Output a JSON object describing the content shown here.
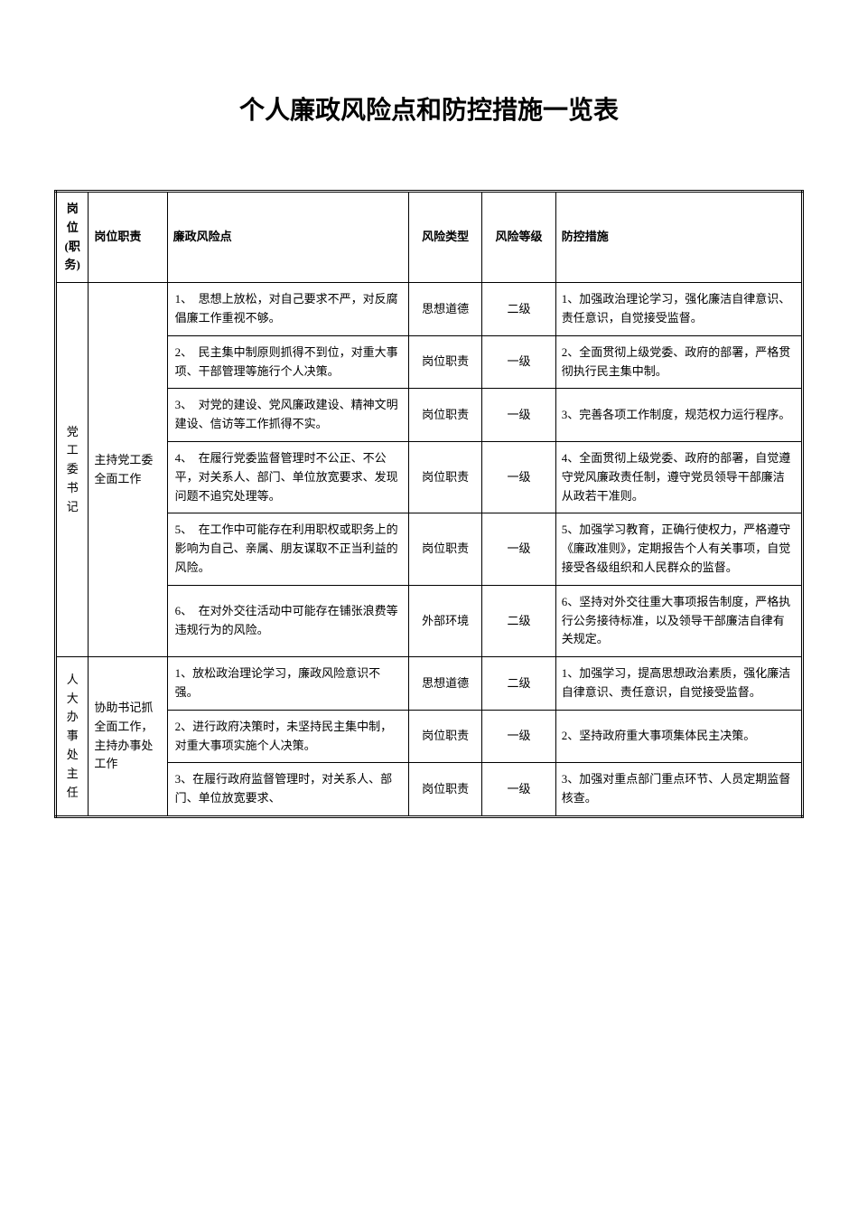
{
  "title": "个人廉政风险点和防控措施一览表",
  "headers": {
    "position": "岗位(职务)",
    "duty": "岗位职责",
    "risk_point": "廉政风险点",
    "risk_type": "风险类型",
    "risk_level": "风险等级",
    "measure": "防控措施"
  },
  "groups": [
    {
      "position": "党工委书记",
      "duty": "主持党工委全面工作",
      "rows": [
        {
          "risk_point": "1、　思想上放松，对自己要求不严，对反腐倡廉工作重视不够。",
          "risk_type": "思想道德",
          "risk_level": "二级",
          "measure": "1、加强政治理论学习，强化廉洁自律意识、责任意识，自觉接受监督。"
        },
        {
          "risk_point": "2、　民主集中制原则抓得不到位，对重大事项、干部管理等施行个人决策。",
          "risk_type": "岗位职责",
          "risk_level": "一级",
          "measure": "2、全面贯彻上级党委、政府的部署，严格贯彻执行民主集中制。"
        },
        {
          "risk_point": "3、　对党的建设、党风廉政建设、精神文明建设、信访等工作抓得不实。",
          "risk_type": "岗位职责",
          "risk_level": "一级",
          "measure": "3、完善各项工作制度，规范权力运行程序。"
        },
        {
          "risk_point": "4、　在履行党委监督管理时不公正、不公平，对关系人、部门、单位放宽要求、发现问题不追究处理等。",
          "risk_type": "岗位职责",
          "risk_level": "一级",
          "measure": "4、全面贯彻上级党委、政府的部署，自觉遵守党风廉政责任制，遵守党员领导干部廉洁从政若干准则。"
        },
        {
          "risk_point": "5、　在工作中可能存在利用职权或职务上的影响为自己、亲属、朋友谋取不正当利益的风险。",
          "risk_type": "岗位职责",
          "risk_level": "一级",
          "measure": "5、加强学习教育，正确行使权力，严格遵守《廉政准则》，定期报告个人有关事项，自觉接受各级组织和人民群众的监督。"
        },
        {
          "risk_point": "6、　在对外交往活动中可能存在铺张浪费等违规行为的风险。",
          "risk_type": "外部环境",
          "risk_level": "二级",
          "measure": "6、坚持对外交往重大事项报告制度，严格执行公务接待标准，以及领导干部廉洁自律有关规定。"
        }
      ]
    },
    {
      "position": "人大办事处主任",
      "duty": "协助书记抓全面工作，主持办事处工作",
      "rows": [
        {
          "risk_point": "1、放松政治理论学习，廉政风险意识不强。",
          "risk_type": "思想道德",
          "risk_level": "二级",
          "measure": "1、加强学习，提高思想政治素质，强化廉洁自律意识、责任意识，自觉接受监督。"
        },
        {
          "risk_point": "2、进行政府决策时，未坚持民主集中制，对重大事项实施个人决策。",
          "risk_type": "岗位职责",
          "risk_level": "一级",
          "measure": "2、坚持政府重大事项集体民主决策。"
        },
        {
          "risk_point": "3、在履行政府监督管理时，对关系人、部门、单位放宽要求、",
          "risk_type": "岗位职责",
          "risk_level": "一级",
          "measure": "3、加强对重点部门重点环节、人员定期监督核查。"
        }
      ]
    }
  ]
}
